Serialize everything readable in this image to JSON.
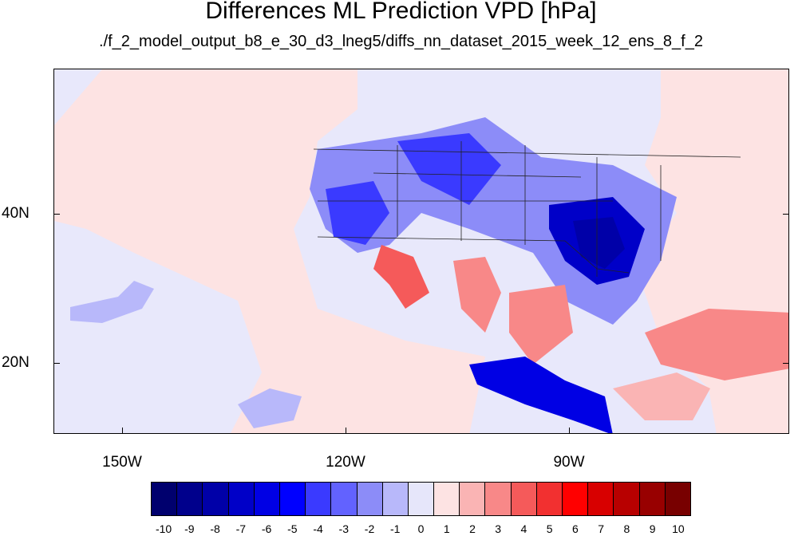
{
  "title": "Differences ML Prediction VPD [hPa]",
  "subtitle": "./f_2_model_output_b8_e_30_d3_lneg5/diffs_nn_dataset_2015_week_12_ens_8_f_2",
  "map": {
    "projection": "lat-lon",
    "lon_range": [
      -159.3,
      -60.7
    ],
    "lat_range": [
      10.5,
      59.5
    ],
    "background_level": -1,
    "lat_labels": [
      "40N",
      "20N"
    ],
    "lon_labels": [
      "150W",
      "120W",
      "90W"
    ]
  },
  "colorbar": {
    "labels": [
      "-10",
      "-9",
      "-8",
      "-7",
      "-6",
      "-5",
      "-4",
      "-3",
      "-2",
      "-1",
      "0",
      "1",
      "2",
      "3",
      "4",
      "5",
      "6",
      "7",
      "8",
      "9",
      "10"
    ],
    "colors": [
      "#00006e",
      "#00008c",
      "#0000a8",
      "#0000c8",
      "#0000e4",
      "#0000ff",
      "#3a3aff",
      "#6262ff",
      "#8c8cf8",
      "#b8b8fa",
      "#e6e6fa",
      "#fde3e3",
      "#fab4b4",
      "#f88888",
      "#f55a5a",
      "#f23030",
      "#ff0000",
      "#d80000",
      "#b80000",
      "#980000",
      "#780000"
    ]
  }
}
